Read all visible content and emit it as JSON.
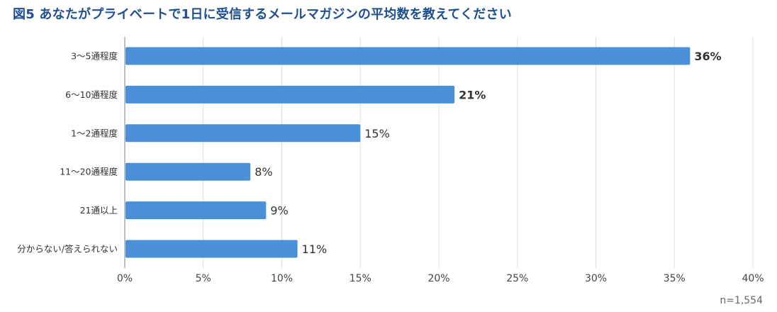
{
  "chart_data": {
    "type": "bar",
    "orientation": "horizontal",
    "title": "図5 あなたがプライベートで1日に受信するメールマガジンの平均数を教えてください",
    "categories": [
      "3〜5通程度",
      "6〜10通程度",
      "1〜2通程度",
      "11〜20通程度",
      "21通以上",
      "分からない/答えられない"
    ],
    "values": [
      36,
      21,
      15,
      8,
      9,
      11
    ],
    "value_labels": [
      "36%",
      "21%",
      "15%",
      "8%",
      "9%",
      "11%"
    ],
    "bold_labels": [
      true,
      true,
      false,
      false,
      false,
      false
    ],
    "xlim": [
      0,
      40
    ],
    "x_ticks": [
      0,
      5,
      10,
      15,
      20,
      25,
      30,
      35,
      40
    ],
    "x_tick_labels": [
      "0%",
      "5%",
      "10%",
      "15%",
      "20%",
      "25%",
      "30%",
      "35%",
      "40%"
    ],
    "xlabel": "",
    "ylabel": "",
    "grid": true,
    "legend": "none",
    "sample_size": "n=1,554",
    "bar_color": "#4a90d9",
    "grid_color": "#dddddd",
    "title_color": "#1d4f91"
  }
}
